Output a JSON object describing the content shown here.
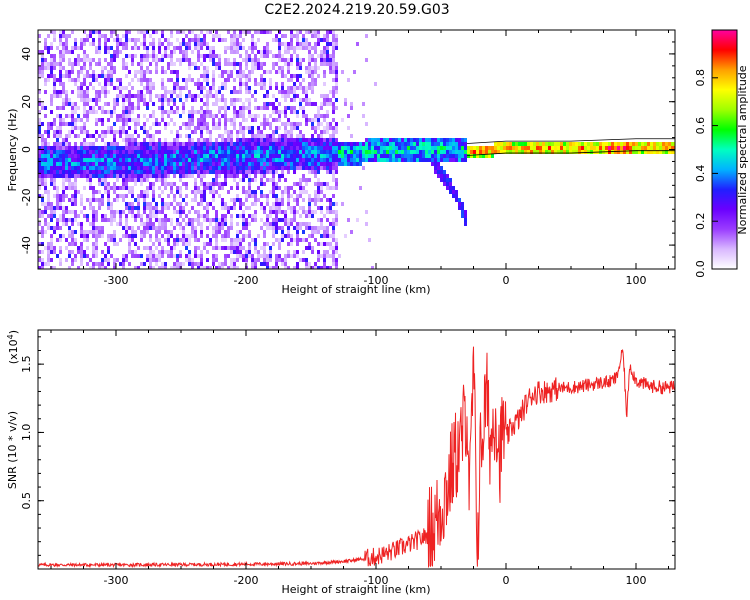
{
  "figure_title": "C2E2.2024.219.20.59.G03",
  "chart_data": [
    {
      "type": "heatmap",
      "title": "",
      "xlabel": "Height of straight line (km)",
      "ylabel": "Frequency (Hz)",
      "xlim": [
        -360,
        130
      ],
      "ylim": [
        -50,
        50
      ],
      "xticks": [
        -300,
        -200,
        -100,
        0,
        100
      ],
      "yticks": [
        -40,
        -20,
        0,
        20,
        40
      ],
      "colorbar": {
        "label": "Normalized spectral amplitude",
        "range": [
          0,
          1
        ],
        "ticks": [
          0.0,
          0.2,
          0.4,
          0.6,
          0.8
        ],
        "colormap": [
          "#ffffff",
          "#d9b8ff",
          "#9a3cff",
          "#6a00ff",
          "#2020ff",
          "#00b4ff",
          "#00ffc0",
          "#00ff00",
          "#a0ff00",
          "#ffff00",
          "#ffa000",
          "#ff0000",
          "#ff00a0"
        ]
      },
      "features": {
        "noise_region_x": [
          -360,
          -130
        ],
        "carrier_track": [
          [
            -360,
            -5
          ],
          [
            -300,
            -4
          ],
          [
            -250,
            -3
          ],
          [
            -200,
            -2
          ],
          [
            -150,
            -1
          ],
          [
            -100,
            0
          ],
          [
            -60,
            1
          ],
          [
            -40,
            1
          ],
          [
            -30,
            0
          ],
          [
            0,
            1
          ],
          [
            50,
            1
          ],
          [
            100,
            2
          ],
          [
            130,
            2
          ]
        ],
        "branch_track": [
          [
            -60,
            -2
          ],
          [
            -50,
            -10
          ],
          [
            -40,
            -18
          ],
          [
            -32,
            -28
          ]
        ]
      }
    },
    {
      "type": "line",
      "title": "",
      "xlabel": "Height of straight line (km)",
      "ylabel": "SNR (10 * v/v)",
      "yscale_note": "(x10",
      "yscale_exp": "4",
      "yscale_close": ")",
      "xlim": [
        -360,
        130
      ],
      "ylim": [
        0,
        17500
      ],
      "xticks": [
        -300,
        -200,
        -100,
        0,
        100
      ],
      "yticks": [
        5000,
        10000,
        15000
      ],
      "ytick_labels": [
        "0.5",
        "1.0",
        "1.5"
      ],
      "series": [
        {
          "color": "#ee2222",
          "x": [
            -360,
            -300,
            -250,
            -200,
            -150,
            -120,
            -100,
            -90,
            -80,
            -70,
            -60,
            -55,
            -50,
            -45,
            -40,
            -35,
            -30,
            -28,
            -25,
            -22,
            -20,
            -18,
            -15,
            -12,
            -10,
            -8,
            -5,
            -2,
            0,
            5,
            10,
            15,
            20,
            25,
            30,
            40,
            50,
            60,
            70,
            80,
            85,
            90,
            93,
            95,
            100,
            110,
            120,
            130
          ],
          "y": [
            300,
            300,
            320,
            350,
            400,
            600,
            900,
            1200,
            1600,
            2000,
            2500,
            3200,
            4500,
            6000,
            8000,
            9000,
            12000,
            5000,
            15000,
            1000,
            8000,
            10000,
            13000,
            9000,
            10500,
            12000,
            8000,
            10500,
            9500,
            10500,
            11000,
            12000,
            12800,
            13000,
            13000,
            13200,
            13300,
            13400,
            13600,
            13700,
            14000,
            16000,
            11000,
            15000,
            13800,
            13400,
            13300,
            13300
          ]
        }
      ]
    }
  ]
}
